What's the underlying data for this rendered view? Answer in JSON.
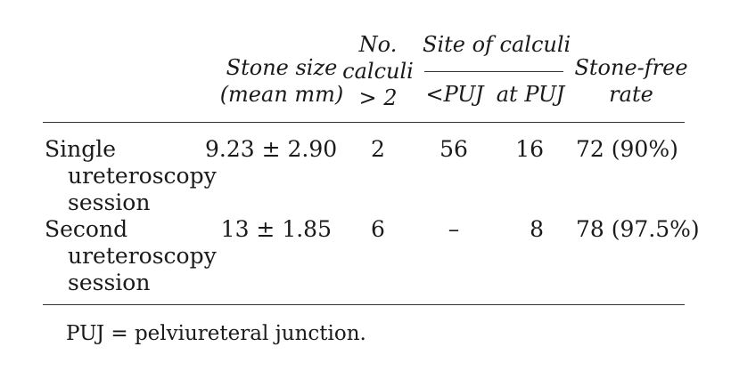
{
  "table": {
    "columns": {
      "stone_size": {
        "line1": "Stone size",
        "line2": "(mean mm)"
      },
      "no_calculi": {
        "line1": "No.",
        "line2": "calculi",
        "line3": "> 2"
      },
      "site_of_calculi": {
        "label": "Site of calculi",
        "sub1": "<PUJ",
        "sub2": "at PUJ"
      },
      "stone_free": {
        "line1": "Stone-free",
        "line2": "rate"
      }
    },
    "rows": [
      {
        "label_lines": [
          "Single",
          "ureteroscopy",
          "session"
        ],
        "stone_size": "9.23 ± 2.90",
        "no_calculi": "2",
        "below_puj": "56",
        "at_puj": "16",
        "stone_free": "72 (90%)"
      },
      {
        "label_lines": [
          "Second",
          "ureteroscopy",
          "session"
        ],
        "stone_size": "13 ± 1.85",
        "no_calculi": "6",
        "below_puj": "–",
        "at_puj": "8",
        "stone_free": "78 (97.5%)"
      }
    ],
    "footnote": "PUJ = pelviureteral junction."
  }
}
